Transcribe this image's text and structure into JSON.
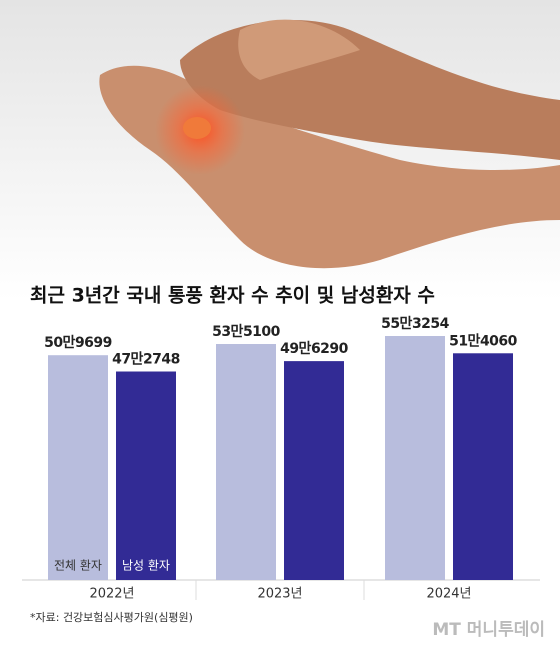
{
  "chart_data": {
    "type": "bar",
    "title": "최근 3년간 국내 통풍 환자 수 추이 및 남성환자 수",
    "categories": [
      "2022년",
      "2023년",
      "2024년"
    ],
    "series": [
      {
        "name": "전체 환자",
        "color": "#b8bddd",
        "values": [
          509699,
          535100,
          553254
        ],
        "value_labels": [
          "50만9699",
          "53만5100",
          "55만3254"
        ]
      },
      {
        "name": "남성 환자",
        "color": "#322b95",
        "values": [
          472748,
          496290,
          514060
        ],
        "value_labels": [
          "47만2748",
          "49만6290",
          "51만4060"
        ]
      }
    ],
    "source": "*자료: 건강보험심사평가원(심평원)",
    "logo": "MT 머니투데이"
  }
}
